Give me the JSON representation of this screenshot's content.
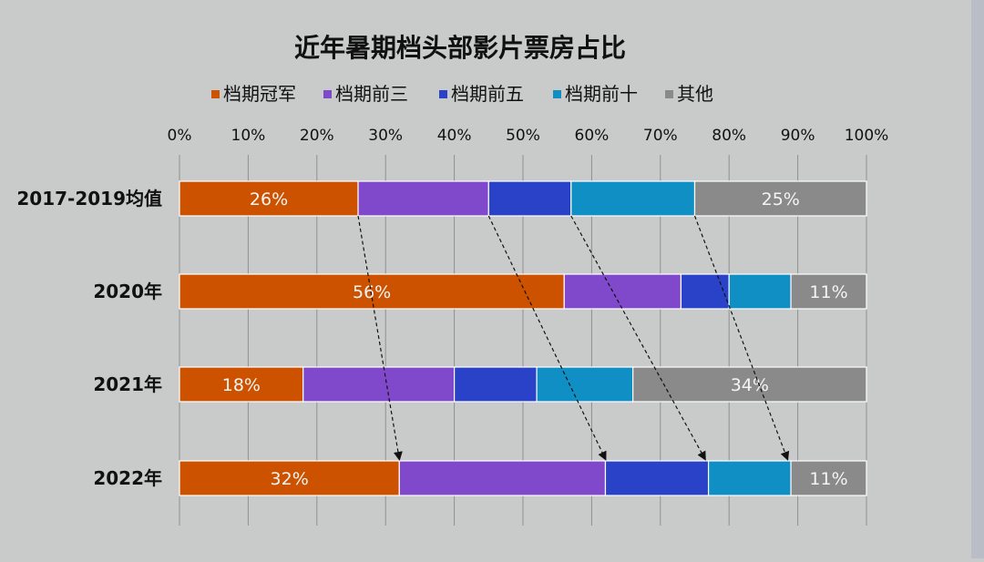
{
  "chart_data": {
    "type": "bar",
    "orientation": "horizontal",
    "stacked": true,
    "title": "近年暑期档头部影片票房占比",
    "categories": [
      "2017-2019均值",
      "2020年",
      "2021年",
      "2022年"
    ],
    "series": [
      {
        "name": "档期冠军",
        "color": "#cc5200",
        "values": [
          26,
          56,
          18,
          32
        ]
      },
      {
        "name": "档期前三",
        "color": "#8049cc",
        "values": [
          19,
          17,
          22,
          30
        ]
      },
      {
        "name": "档期前五",
        "color": "#2a42c8",
        "values": [
          12,
          7,
          12,
          15
        ]
      },
      {
        "name": "档期前十",
        "color": "#0f8fc4",
        "values": [
          18,
          9,
          14,
          12
        ]
      },
      {
        "name": "其他",
        "color": "#8a8a8a",
        "values": [
          25,
          11,
          34,
          11
        ]
      }
    ],
    "data_labels": [
      {
        "category": "2017-2019均值",
        "series": "档期冠军",
        "text": "26%"
      },
      {
        "category": "2017-2019均值",
        "series": "其他",
        "text": "25%"
      },
      {
        "category": "2020年",
        "series": "档期冠军",
        "text": "56%"
      },
      {
        "category": "2020年",
        "series": "其他",
        "text": "11%"
      },
      {
        "category": "2021年",
        "series": "档期冠军",
        "text": "18%"
      },
      {
        "category": "2021年",
        "series": "其他",
        "text": "34%"
      },
      {
        "category": "2022年",
        "series": "档期冠军",
        "text": "32%"
      },
      {
        "category": "2022年",
        "series": "其他",
        "text": "11%"
      }
    ],
    "x_ticks": [
      "0%",
      "10%",
      "20%",
      "30%",
      "40%",
      "50%",
      "60%",
      "70%",
      "80%",
      "90%",
      "100%"
    ],
    "xlim": [
      0,
      100
    ],
    "grid": "vertical",
    "legend_position": "top",
    "annotations": [
      {
        "type": "dashed-arrow",
        "from": {
          "category": "2017-2019均值",
          "value": 26
        },
        "to": {
          "category": "2022年",
          "value": 32
        }
      },
      {
        "type": "dashed-arrow",
        "from": {
          "category": "2017-2019均值",
          "value": 45
        },
        "to": {
          "category": "2022年",
          "value": 62
        }
      },
      {
        "type": "dashed-arrow",
        "from": {
          "category": "2017-2019均值",
          "value": 57
        },
        "to": {
          "category": "2022年",
          "value": 76.5
        }
      },
      {
        "type": "dashed-arrow",
        "from": {
          "category": "2017-2019均值",
          "value": 75
        },
        "to": {
          "category": "2022年",
          "value": 88.5
        }
      }
    ]
  }
}
